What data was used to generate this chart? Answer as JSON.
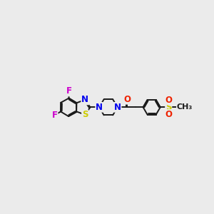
{
  "bg_color": "#ebebeb",
  "bond_color": "#1a1a1a",
  "bond_width": 1.4,
  "N_color": "#0000ee",
  "S_color": "#cccc00",
  "O_color": "#ee2200",
  "F_color": "#cc00cc",
  "font_size": 8.5,
  "xlim": [
    0,
    10
  ],
  "ylim": [
    0,
    10
  ],
  "mol_y": 5.05,
  "bz_r": 0.55,
  "ph_r": 0.52,
  "pip_r": 0.55
}
